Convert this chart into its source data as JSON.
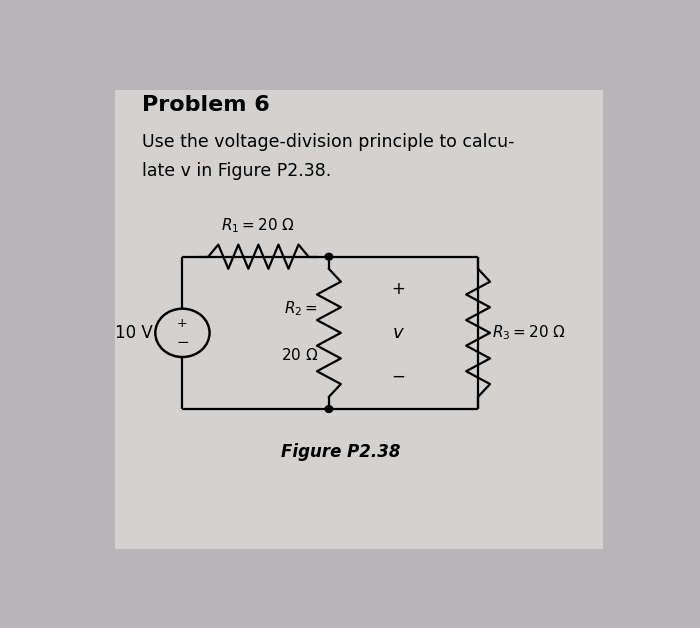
{
  "title": "Problem 6",
  "subtitle_line1": "Use the voltage-division principle to calcu-",
  "subtitle_line2": "late v in Figure P2.38.",
  "figure_caption": "Figure P2.38",
  "voltage_source_label": "10 V",
  "R1_label": "$R_1 = 20\\ \\Omega$",
  "R2_label_line1": "$R_2 =$",
  "R2_label_line2": "$20\\ \\Omega$",
  "R3_label": "$R_3 = 20\\ \\Omega$",
  "v_label": "$v$",
  "plus_v": "+",
  "minus_v": "−",
  "plus_source": "+",
  "minus_source": "−",
  "bg_color": "#b8b5b8",
  "paper_color": "#d4d2d0",
  "line_color": "#000000",
  "text_color": "#000000",
  "lw": 1.6
}
